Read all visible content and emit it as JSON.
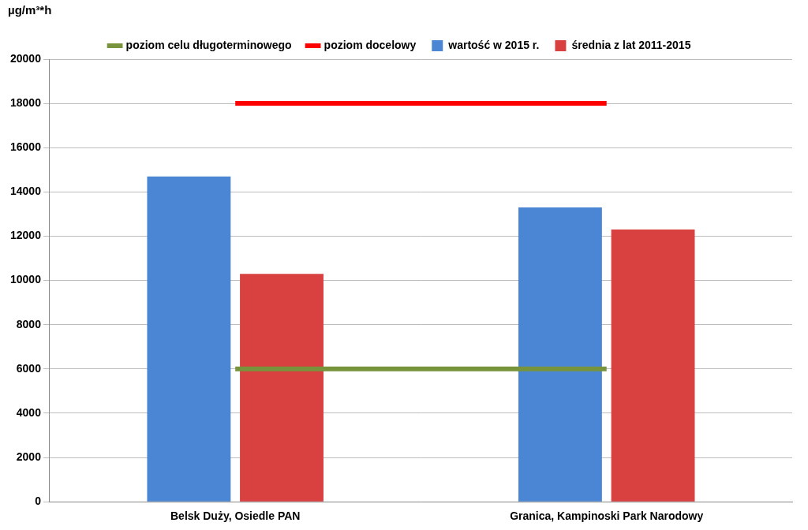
{
  "chart_data": {
    "type": "bar",
    "y_label": "µg/m³*h",
    "categories": [
      "Belsk Duży, Osiedle PAN",
      "Granica, Kampinoski Park Narodowy"
    ],
    "series": [
      {
        "name": "wartość w 2015 r.",
        "color": "#4a86d4",
        "values": [
          14700,
          13300
        ],
        "type": "bar"
      },
      {
        "name": "średnia z lat 2011-2015",
        "color": "#d94141",
        "values": [
          10300,
          12300
        ],
        "type": "bar"
      },
      {
        "name": "poziom celu długoterminowego",
        "color": "#77933c",
        "values": [
          6000,
          6000
        ],
        "type": "line"
      },
      {
        "name": "poziom docelowy",
        "color": "#ff0000",
        "values": [
          18000,
          18000
        ],
        "type": "line"
      }
    ],
    "ylim": [
      0,
      20000
    ],
    "yticks": [
      0,
      2000,
      4000,
      6000,
      8000,
      10000,
      12000,
      14000,
      16000,
      18000,
      20000
    ],
    "grid": true,
    "legend": "top"
  }
}
